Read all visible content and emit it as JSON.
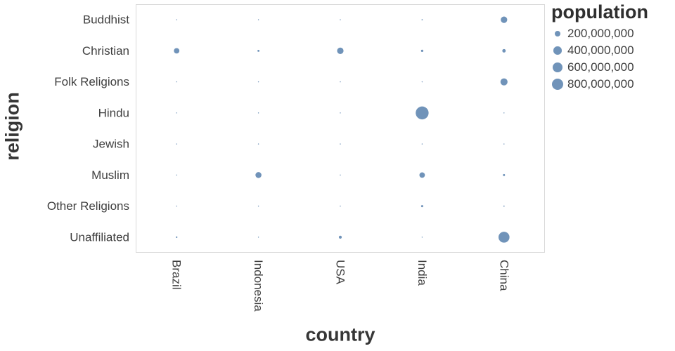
{
  "chart_data": {
    "type": "scatter",
    "variant": "bubble",
    "title": "",
    "xlabel": "country",
    "ylabel": "religion",
    "x_categories": [
      "Brazil",
      "Indonesia",
      "USA",
      "India",
      "China"
    ],
    "y_categories": [
      "Buddhist",
      "Christian",
      "Folk Religions",
      "Hindu",
      "Jewish",
      "Muslim",
      "Other Religions",
      "Unaffiliated"
    ],
    "size_field": "population",
    "series": [
      {
        "religion": "Buddhist",
        "populations": [
          500000,
          1700000,
          3600000,
          9300000,
          244100000
        ]
      },
      {
        "religion": "Christian",
        "populations": [
          175800000,
          23700000,
          243100000,
          31100000,
          68400000
        ]
      },
      {
        "religion": "Folk Religions",
        "populations": [
          1100000,
          700000,
          600000,
          5600000,
          294300000
        ]
      },
      {
        "religion": "Hindu",
        "populations": [
          0,
          4100000,
          1800000,
          973800000,
          0
        ]
      },
      {
        "religion": "Jewish",
        "populations": [
          100000,
          0,
          5700000,
          0,
          0
        ]
      },
      {
        "religion": "Muslim",
        "populations": [
          200000,
          209100000,
          2800000,
          176200000,
          24700000
        ]
      },
      {
        "religion": "Other Religions",
        "populations": [
          1100000,
          400000,
          1900000,
          27600000,
          9100000
        ]
      },
      {
        "religion": "Unaffiliated",
        "populations": [
          15400000,
          200000,
          50500000,
          900000,
          700700000
        ]
      }
    ],
    "legend": {
      "title": "population",
      "values": [
        200000000,
        400000000,
        600000000,
        800000000
      ],
      "labels": [
        "200,000,000",
        "400,000,000",
        "600,000,000",
        "800,000,000"
      ]
    },
    "axes": {
      "grid": false,
      "plot_border": true
    },
    "colors": {
      "bubble": "#4c78a8",
      "tick_label": "#3f3f3f",
      "axis_title": "#363636",
      "plot_border": "#d9d9d9",
      "background": "#ffffff"
    }
  }
}
